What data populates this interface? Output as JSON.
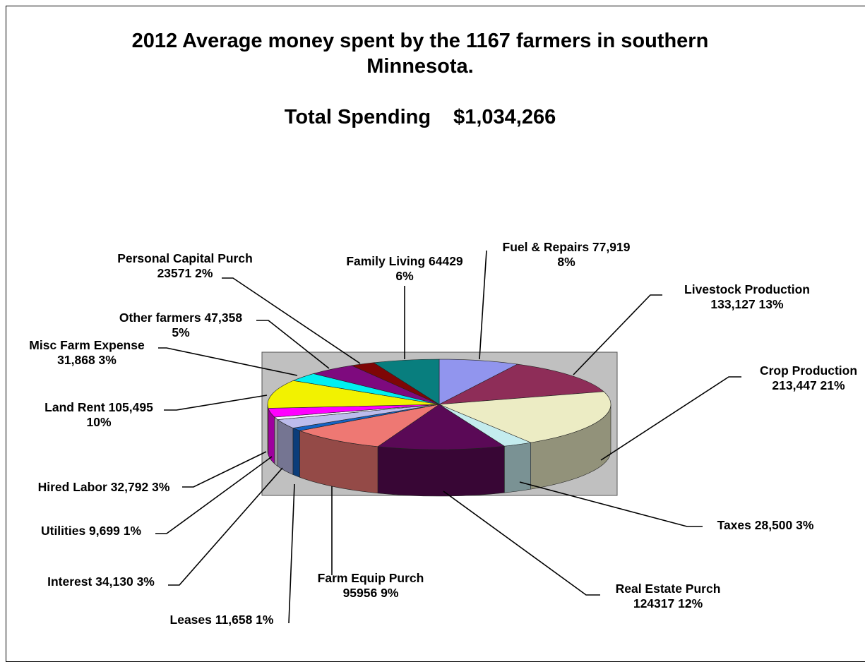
{
  "chart_data": {
    "type": "pie",
    "title": "2012 Average money spent by the 1167 farmers in southern Minnesota.",
    "title_lines": [
      "2012 Average money spent by the 1167 farmers in southern",
      "Minnesota."
    ],
    "subtitle_label": "Total Spending",
    "subtitle_value": "$1,034,266",
    "legend": "none",
    "three_d": true,
    "slices": [
      {
        "key": "fuel",
        "value": 77919,
        "percent": 8,
        "color": "#9195ee",
        "line1": "Fuel & Repairs 77,919",
        "line2": "8%"
      },
      {
        "key": "livestock",
        "value": 133127,
        "percent": 13,
        "color": "#8e2d58",
        "line1": "Livestock Production",
        "line2": "133,127 13%"
      },
      {
        "key": "crop",
        "value": 213447,
        "percent": 21,
        "color": "#ececc4",
        "line1": "Crop Production",
        "line2": "213,447 21%"
      },
      {
        "key": "taxes",
        "value": 28500,
        "percent": 3,
        "color": "#c4ecee",
        "line1": "Taxes 28,500 3%",
        "line2": ""
      },
      {
        "key": "realestate",
        "value": 124317,
        "percent": 12,
        "color": "#5a0956",
        "line1": "Real Estate Purch",
        "line2": "124317 12%"
      },
      {
        "key": "equip",
        "value": 95956,
        "percent": 9,
        "color": "#ee7873",
        "line1": "Farm Equip Purch",
        "line2": "95956 9%"
      },
      {
        "key": "leases",
        "value": 11658,
        "percent": 1,
        "color": "#1463c4",
        "line1": "Leases 11,658 1%",
        "line2": ""
      },
      {
        "key": "interest",
        "value": 34130,
        "percent": 3,
        "color": "#bcbcec",
        "line1": "Interest 34,130 3%",
        "line2": ""
      },
      {
        "key": "utilities",
        "value": 9699,
        "percent": 1,
        "color": "#f5f5ff",
        "line1": "Utilities 9,699 1%",
        "line2": ""
      },
      {
        "key": "hired",
        "value": 32792,
        "percent": 3,
        "color": "#ff00ff",
        "line1": "Hired Labor 32,792 3%",
        "line2": ""
      },
      {
        "key": "landrent",
        "value": 105495,
        "percent": 10,
        "color": "#f2f200",
        "line1": "Land Rent 105,495",
        "line2": "10%"
      },
      {
        "key": "misc",
        "value": 31868,
        "percent": 3,
        "color": "#00f0f0",
        "line1": "Misc Farm Expense",
        "line2": "31,868 3%"
      },
      {
        "key": "other",
        "value": 47358,
        "percent": 5,
        "color": "#7e0a7e",
        "line1": "Other farmers 47,358",
        "line2": "5%"
      },
      {
        "key": "personal",
        "value": 23571,
        "percent": 2,
        "color": "#7e0606",
        "line1": "Personal Capital Purch",
        "line2": "23571 2%"
      },
      {
        "key": "family",
        "value": 64429,
        "percent": 6,
        "color": "#087e7e",
        "line1": "Family  Living 64429",
        "line2": "6%"
      }
    ],
    "plot_area_color": "#c0c0c0"
  }
}
